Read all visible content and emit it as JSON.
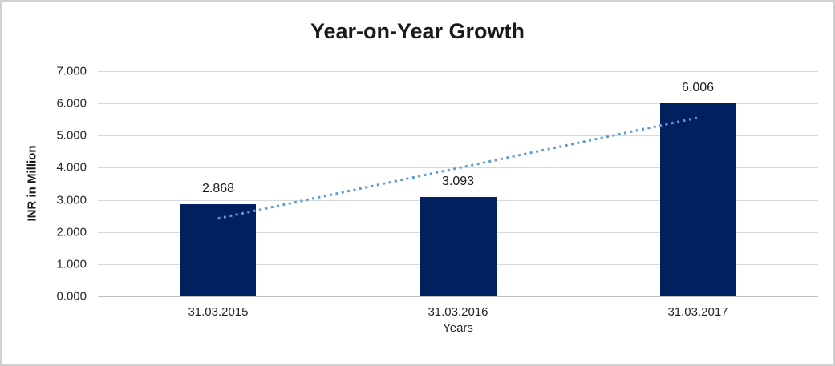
{
  "chart_data": {
    "type": "bar",
    "title": "Year-on-Year Growth",
    "xlabel": "Years",
    "ylabel": "INR in Million",
    "categories": [
      "31.03.2015",
      "31.03.2016",
      "31.03.2017"
    ],
    "values": [
      2.868,
      3.093,
      6.006
    ],
    "value_labels": [
      "2.868",
      "3.093",
      "6.006"
    ],
    "ylim": [
      0,
      7
    ],
    "yticks": [
      0,
      1,
      2,
      3,
      4,
      5,
      6,
      7
    ],
    "ytick_labels": [
      "0.000",
      "1.000",
      "2.000",
      "3.000",
      "4.000",
      "5.000",
      "6.000",
      "7.000"
    ],
    "grid": true,
    "legend": "none",
    "bar_color": "#002060",
    "trendline": {
      "type": "linear",
      "style": "dotted",
      "color": "#5b9bd5",
      "start_value": 2.42,
      "end_value": 5.56
    },
    "colors": {
      "background": "#ffffff",
      "border": "#d0d0d0",
      "gridline": "#d9d9d9",
      "axis_line": "#bfbfbf",
      "text": "#262626",
      "title_text": "#1a1a1a"
    }
  }
}
